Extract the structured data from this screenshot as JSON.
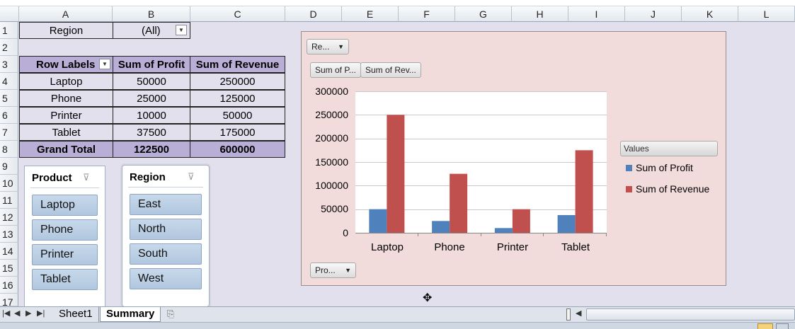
{
  "spreadsheet": {
    "columns": [
      "A",
      "B",
      "C",
      "D",
      "E",
      "F",
      "G",
      "H",
      "I",
      "J",
      "K",
      "L"
    ],
    "rows": [
      "1",
      "2",
      "3",
      "4",
      "5",
      "6",
      "7",
      "8",
      "9",
      "10",
      "11",
      "12",
      "13",
      "14",
      "15",
      "16",
      "17"
    ]
  },
  "report_filter": {
    "label": "Region",
    "value": "(All)"
  },
  "pivot": {
    "headers": [
      "Row Labels",
      "Sum of Profit",
      "Sum of Revenue"
    ],
    "rows": [
      {
        "label": "Laptop",
        "profit": "50000",
        "revenue": "250000"
      },
      {
        "label": "Phone",
        "profit": "25000",
        "revenue": "125000"
      },
      {
        "label": "Printer",
        "profit": "10000",
        "revenue": "50000"
      },
      {
        "label": "Tablet",
        "profit": "37500",
        "revenue": "175000"
      }
    ],
    "grand_total": {
      "label": "Grand Total",
      "profit": "122500",
      "revenue": "600000"
    }
  },
  "slicers": [
    {
      "title": "Product",
      "items": [
        "Laptop",
        "Phone",
        "Printer",
        "Tablet"
      ]
    },
    {
      "title": "Region",
      "items": [
        "East",
        "North",
        "South",
        "West"
      ]
    }
  ],
  "chart_buttons": {
    "filter": "Re...",
    "value1": "Sum of P...",
    "value2": "Sum of Rev...",
    "axis": "Pro...",
    "legend_title": "Values"
  },
  "chart_data": {
    "type": "bar",
    "categories": [
      "Laptop",
      "Phone",
      "Printer",
      "Tablet"
    ],
    "series": [
      {
        "name": "Sum of Profit",
        "values": [
          50000,
          25000,
          10000,
          37500
        ],
        "color": "#4f81bd"
      },
      {
        "name": "Sum of Revenue",
        "values": [
          250000,
          125000,
          50000,
          175000
        ],
        "color": "#c0504d"
      }
    ],
    "yticks": [
      "300000",
      "250000",
      "200000",
      "150000",
      "100000",
      "50000",
      "0"
    ],
    "ylim": [
      0,
      300000
    ],
    "grid": true,
    "legend": "right"
  },
  "sheets": {
    "tabs": [
      "Sheet1",
      "Summary"
    ],
    "active": "Summary"
  }
}
